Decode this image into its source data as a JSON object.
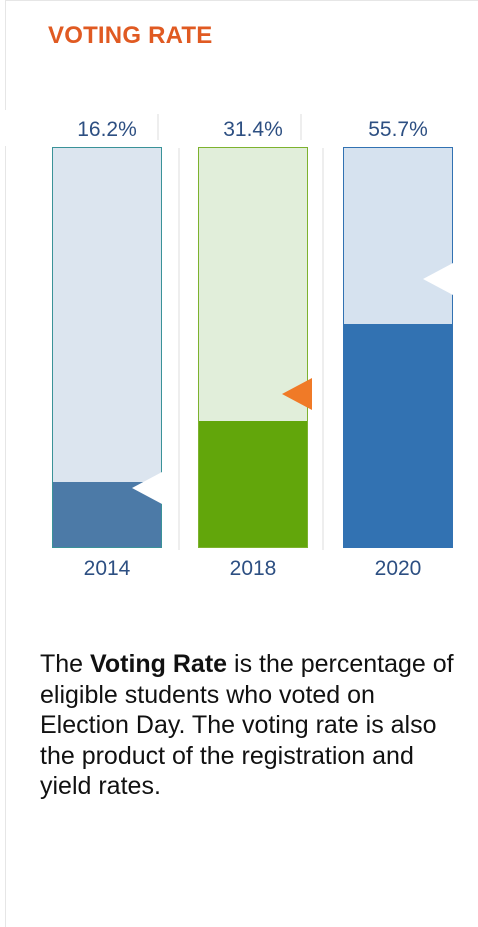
{
  "title": "VOTING RATE",
  "chart_data": {
    "type": "bar",
    "categories": [
      "2014",
      "2018",
      "2020"
    ],
    "values": [
      16.2,
      31.4,
      55.7
    ],
    "value_labels": [
      "16.2%",
      "31.4%",
      "55.7%"
    ],
    "ylim": [
      0,
      100
    ],
    "benchmarks": [
      15,
      38.5,
      67
    ],
    "colors": {
      "track": [
        "#dce5ef",
        "#e1eeda",
        "#d6e2ef"
      ],
      "fill": [
        "#4c7aa7",
        "#62a60b",
        "#3272b2"
      ],
      "border": [
        "#3a9298",
        "#7db22e",
        "#3272b2"
      ],
      "marker": [
        "#ffffff",
        "#f07a27",
        "#ffffff"
      ]
    },
    "title": "VOTING RATE"
  },
  "description": {
    "prefix": "The ",
    "bold": "Voting Rate",
    "suffix": " is the percentage of eligible students who voted on Election Day. The voting rate is also the product of the registration and yield rates."
  }
}
